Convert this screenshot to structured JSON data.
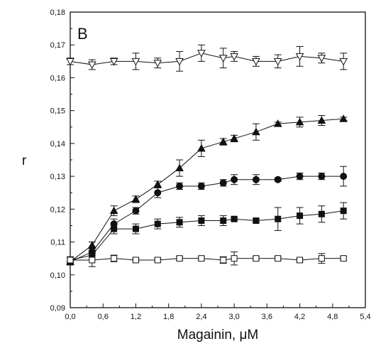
{
  "chart_data": {
    "type": "line",
    "panel_label": "B",
    "xlabel": "Magainin, μM",
    "ylabel": "r",
    "xlim": [
      0.0,
      5.4
    ],
    "ylim": [
      0.09,
      0.18
    ],
    "x_ticks": [
      0.0,
      0.6,
      1.2,
      1.8,
      2.4,
      3.0,
      3.6,
      4.2,
      4.8,
      5.4
    ],
    "x_tick_labels": [
      "0,0",
      "0,6",
      "1,2",
      "1,8",
      "2,4",
      "3,0",
      "3,6",
      "4,2",
      "4,8",
      "5,4"
    ],
    "y_ticks": [
      0.09,
      0.1,
      0.11,
      0.12,
      0.13,
      0.14,
      0.15,
      0.16,
      0.17,
      0.18
    ],
    "y_tick_labels": [
      "0,09",
      "0,10",
      "0,11",
      "0,12",
      "0,13",
      "0,14",
      "0,15",
      "0,16",
      "0,17",
      "0,18"
    ],
    "grid": false,
    "series": [
      {
        "marker": "triangle-down-open",
        "x": [
          0.0,
          0.4,
          0.8,
          1.2,
          1.6,
          2.0,
          2.4,
          2.8,
          3.0,
          3.4,
          3.8,
          4.2,
          4.6,
          5.0
        ],
        "y": [
          0.165,
          0.164,
          0.165,
          0.165,
          0.1645,
          0.165,
          0.1675,
          0.166,
          0.1665,
          0.165,
          0.165,
          0.1665,
          0.166,
          0.165
        ],
        "err": [
          0.001,
          0.0015,
          0.001,
          0.0025,
          0.0015,
          0.003,
          0.0025,
          0.003,
          0.0015,
          0.0015,
          0.002,
          0.003,
          0.0015,
          0.0025
        ]
      },
      {
        "marker": "triangle-up-filled",
        "x": [
          0.0,
          0.4,
          0.8,
          1.2,
          1.6,
          2.0,
          2.4,
          2.8,
          3.0,
          3.4,
          3.8,
          4.2,
          4.6,
          5.0
        ],
        "y": [
          0.104,
          0.109,
          0.1195,
          0.123,
          0.1275,
          0.1325,
          0.1385,
          0.1405,
          0.1415,
          0.1435,
          0.146,
          0.1465,
          0.147,
          0.1475
        ],
        "err": [
          0.001,
          0.001,
          0.0015,
          0.001,
          0.001,
          0.0025,
          0.0025,
          0.001,
          0.001,
          0.0025,
          0.0005,
          0.0015,
          0.0015,
          0.0005
        ]
      },
      {
        "marker": "circle-filled",
        "x": [
          0.0,
          0.4,
          0.8,
          1.2,
          1.6,
          2.0,
          2.4,
          2.8,
          3.0,
          3.4,
          3.8,
          4.2,
          4.6,
          5.0
        ],
        "y": [
          0.104,
          0.107,
          0.1155,
          0.1195,
          0.125,
          0.127,
          0.127,
          0.128,
          0.129,
          0.129,
          0.129,
          0.13,
          0.13,
          0.13
        ],
        "err": [
          0.001,
          0.001,
          0.0015,
          0.001,
          0.0015,
          0.001,
          0.001,
          0.001,
          0.0015,
          0.0015,
          0.0005,
          0.001,
          0.001,
          0.003
        ]
      },
      {
        "marker": "square-filled",
        "x": [
          0.0,
          0.4,
          0.8,
          1.2,
          1.6,
          2.0,
          2.4,
          2.8,
          3.0,
          3.4,
          3.8,
          4.2,
          4.6,
          5.0
        ],
        "y": [
          0.1045,
          0.106,
          0.114,
          0.114,
          0.1155,
          0.116,
          0.1165,
          0.1165,
          0.117,
          0.1165,
          0.117,
          0.118,
          0.1185,
          0.1195
        ],
        "err": [
          0.001,
          0.0015,
          0.0015,
          0.0015,
          0.0015,
          0.0015,
          0.0015,
          0.0015,
          0.0005,
          0.0005,
          0.0035,
          0.0025,
          0.0025,
          0.0025
        ]
      },
      {
        "marker": "square-open",
        "x": [
          0.0,
          0.4,
          0.8,
          1.2,
          1.6,
          2.0,
          2.4,
          2.8,
          3.0,
          3.4,
          3.8,
          4.2,
          4.6,
          5.0
        ],
        "y": [
          0.1045,
          0.1045,
          0.105,
          0.1045,
          0.1045,
          0.105,
          0.105,
          0.1045,
          0.105,
          0.105,
          0.105,
          0.1045,
          0.105,
          0.105
        ],
        "err": [
          0.001,
          0.002,
          0.001,
          0.0005,
          0.0005,
          0.0005,
          0.0005,
          0.001,
          0.002,
          0.0005,
          0.0005,
          0.0005,
          0.0015,
          0.0005
        ]
      }
    ]
  }
}
